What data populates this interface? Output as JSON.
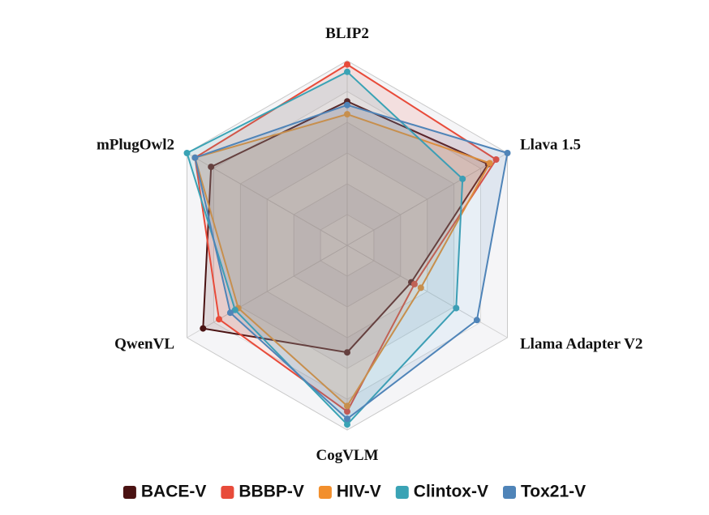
{
  "chart_data": {
    "type": "radar",
    "axes": [
      "BLIP2",
      "Llava 1.5",
      "Llama Adapter V2",
      "CogVLM",
      "QwenVL",
      "mPlugOwl2"
    ],
    "range": [
      0,
      1
    ],
    "grid_levels": 6,
    "legend_position": "bottom",
    "series": [
      {
        "name": "BACE-V",
        "color": "#4a1212",
        "values": [
          0.78,
          0.88,
          0.4,
          0.58,
          0.9,
          0.85
        ]
      },
      {
        "name": "BBBP-V",
        "color": "#e84b3a",
        "values": [
          0.98,
          0.93,
          0.42,
          0.9,
          0.8,
          0.95
        ]
      },
      {
        "name": "HIV-V",
        "color": "#f28f2c",
        "values": [
          0.71,
          0.89,
          0.46,
          0.87,
          0.68,
          0.95
        ]
      },
      {
        "name": "Clintox-V",
        "color": "#3aa3b5",
        "values": [
          0.94,
          0.72,
          0.68,
          0.97,
          0.7,
          1.0
        ]
      },
      {
        "name": "Tox21-V",
        "color": "#4f84b8",
        "values": [
          0.76,
          1.0,
          0.81,
          0.94,
          0.73,
          0.95
        ]
      }
    ]
  }
}
